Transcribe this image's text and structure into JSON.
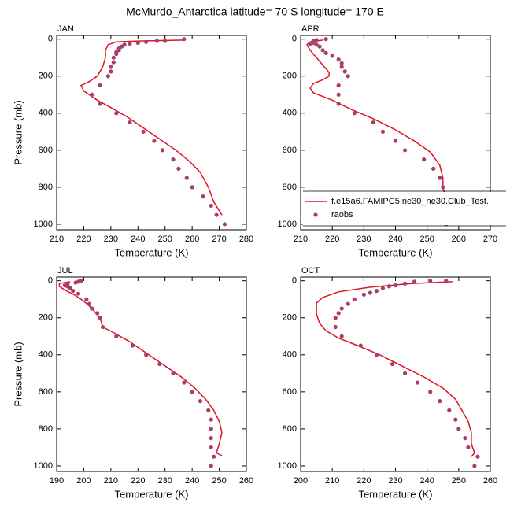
{
  "title": "McMurdo_Antarctica  latitude= 70 S longitude= 170 E",
  "chart_data": [
    {
      "type": "line",
      "title": "JAN",
      "x_label": "Temperature (K)",
      "y_label": "Pressure (mb)",
      "xlim": [
        210,
        280
      ],
      "xticks": [
        210,
        220,
        230,
        240,
        250,
        260,
        270,
        280
      ],
      "ylim": [
        -20,
        1030
      ],
      "yticks": [
        0,
        200,
        400,
        600,
        800,
        1000
      ],
      "y_reversed": true,
      "grid": false,
      "series": [
        {
          "type": "line",
          "color": "#e0141e",
          "x": [
            257,
            240,
            232,
            229,
            228,
            228,
            227,
            225,
            222,
            219,
            220,
            225,
            230,
            236,
            242,
            248,
            254,
            259,
            263,
            266,
            268,
            271
          ],
          "values": [
            5,
            10,
            15,
            30,
            60,
            100,
            150,
            200,
            230,
            250,
            280,
            330,
            370,
            420,
            480,
            540,
            600,
            660,
            720,
            800,
            880,
            950
          ]
        },
        {
          "type": "scatter",
          "color": "#a83e6e",
          "x": [
            257,
            250,
            247,
            243,
            240,
            237,
            235,
            234,
            233,
            233,
            232,
            232,
            231,
            231,
            230,
            230,
            229,
            226,
            223,
            226,
            232,
            237,
            242,
            246,
            249,
            253,
            255,
            258,
            260,
            264,
            267,
            269,
            272
          ],
          "values": [
            0,
            10,
            10,
            15,
            20,
            25,
            30,
            40,
            50,
            60,
            70,
            80,
            100,
            125,
            150,
            175,
            200,
            250,
            300,
            350,
            400,
            450,
            500,
            550,
            600,
            650,
            700,
            750,
            800,
            850,
            900,
            950,
            1000
          ]
        }
      ]
    },
    {
      "type": "line",
      "title": "APR",
      "x_label": "Temperature (K)",
      "xlim": [
        210,
        270
      ],
      "xticks": [
        210,
        220,
        230,
        240,
        250,
        260,
        270
      ],
      "ylim": [
        -20,
        1030
      ],
      "yticks": [
        0,
        200,
        400,
        600,
        800,
        1000
      ],
      "y_reversed": true,
      "grid": false,
      "legend": "lower right",
      "series": [
        {
          "type": "line",
          "name": "f.e15a6.FAMIPC5.ne30_ne30.Club_Test.",
          "color": "#e0141e",
          "x": [
            217,
            213,
            212,
            213,
            215,
            217,
            219,
            219,
            217,
            214,
            213,
            214,
            220,
            226,
            233,
            240,
            246,
            251,
            254,
            255,
            255,
            256,
            258,
            261
          ],
          "values": [
            5,
            15,
            30,
            60,
            100,
            140,
            180,
            200,
            220,
            240,
            265,
            290,
            330,
            380,
            430,
            490,
            550,
            610,
            680,
            750,
            800,
            870,
            920,
            950
          ]
        },
        {
          "type": "scatter",
          "name": "raobs",
          "color": "#a83e6e",
          "x": [
            218,
            215,
            214,
            214,
            213,
            215,
            216,
            217,
            218,
            220,
            222,
            223,
            223,
            224,
            225,
            222,
            222,
            222,
            227,
            233,
            236,
            240,
            243,
            249,
            252,
            254,
            255,
            256,
            256,
            256,
            256
          ],
          "values": [
            0,
            5,
            10,
            20,
            25,
            30,
            40,
            60,
            75,
            90,
            110,
            130,
            150,
            175,
            200,
            250,
            300,
            350,
            400,
            450,
            500,
            550,
            600,
            650,
            700,
            750,
            800,
            850,
            900,
            950,
            1000
          ]
        }
      ]
    },
    {
      "type": "line",
      "title": "JUL",
      "x_label": "Temperature (K)",
      "y_label": "Pressure (mb)",
      "xlim": [
        190,
        260
      ],
      "xticks": [
        190,
        200,
        210,
        220,
        230,
        240,
        250,
        260
      ],
      "ylim": [
        -20,
        1030
      ],
      "yticks": [
        0,
        200,
        400,
        600,
        800,
        1000
      ],
      "y_reversed": true,
      "grid": false,
      "series": [
        {
          "type": "line",
          "color": "#e0141e",
          "x": [
            195,
            191,
            191,
            193,
            197,
            200,
            203,
            206,
            207,
            211,
            217,
            223,
            229,
            236,
            241,
            245,
            248,
            250,
            251,
            250,
            249,
            251
          ],
          "values": [
            5,
            15,
            30,
            50,
            80,
            110,
            150,
            200,
            250,
            280,
            330,
            390,
            450,
            520,
            580,
            640,
            700,
            760,
            820,
            880,
            930,
            945
          ]
        },
        {
          "type": "scatter",
          "color": "#a83e6e",
          "x": [
            199,
            198,
            197,
            194,
            193,
            194,
            195,
            196,
            198,
            201,
            202,
            203,
            205,
            206,
            207,
            212,
            218,
            223,
            228,
            233,
            237,
            240,
            243,
            246,
            247,
            247,
            247,
            247,
            248,
            247
          ],
          "values": [
            0,
            5,
            10,
            20,
            25,
            30,
            40,
            55,
            70,
            100,
            125,
            150,
            175,
            200,
            250,
            300,
            350,
            400,
            450,
            500,
            550,
            600,
            650,
            700,
            750,
            800,
            850,
            900,
            950,
            1000
          ]
        }
      ]
    },
    {
      "type": "line",
      "title": "OCT",
      "x_label": "Temperature (K)",
      "xlim": [
        200,
        260
      ],
      "xticks": [
        200,
        210,
        220,
        230,
        240,
        250,
        260
      ],
      "ylim": [
        -20,
        1030
      ],
      "yticks": [
        0,
        200,
        400,
        600,
        800,
        1000
      ],
      "y_reversed": true,
      "grid": false,
      "series": [
        {
          "type": "line",
          "color": "#e0141e",
          "x": [
            248,
            235,
            222,
            212,
            207,
            205,
            205,
            206,
            208,
            212,
            218,
            225,
            232,
            239,
            245,
            249,
            251,
            253,
            254,
            254,
            255,
            254
          ],
          "values": [
            5,
            15,
            35,
            60,
            90,
            120,
            180,
            230,
            270,
            310,
            350,
            400,
            460,
            520,
            580,
            640,
            700,
            760,
            820,
            880,
            930,
            950
          ]
        },
        {
          "type": "scatter",
          "color": "#a83e6e",
          "x": [
            246,
            241,
            236,
            233,
            230,
            228,
            226,
            224,
            222,
            220,
            217,
            215,
            213,
            212,
            211,
            211,
            213,
            219,
            224,
            229,
            233,
            237,
            241,
            244,
            247,
            249,
            250,
            252,
            253,
            256,
            255
          ],
          "values": [
            0,
            0,
            5,
            15,
            25,
            30,
            40,
            55,
            65,
            75,
            100,
            125,
            150,
            175,
            200,
            250,
            300,
            350,
            400,
            450,
            500,
            550,
            600,
            650,
            700,
            750,
            800,
            850,
            900,
            950,
            1000
          ]
        }
      ]
    }
  ]
}
